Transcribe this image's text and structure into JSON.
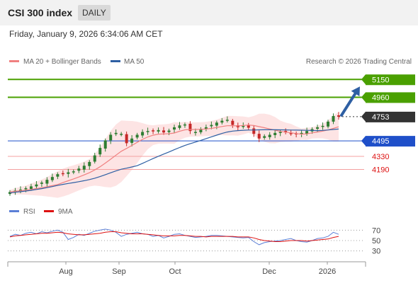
{
  "header": {
    "title": "CSI 300 index",
    "interval": "DAILY",
    "datetime": "Friday, January 9, 2026 6:34:06 AM CET"
  },
  "legend": {
    "ma20_label": "MA 20 + Bollinger Bands",
    "ma50_label": "MA 50",
    "credit": "Research © 2026 Trading Central"
  },
  "rsi_legend": {
    "rsi_label": "RSI",
    "ma_label": "9MA"
  },
  "colors": {
    "ma20": "#f08080",
    "ma50": "#2e5fa3",
    "bollinger_fill": "#fde4e4",
    "resistance": "#4aa000",
    "support": "#1f4fc9",
    "support_minor": "#f4a0a0",
    "current": "#333333",
    "arrow": "#2e5fa3",
    "up_candle": "#2e7d32",
    "down_candle": "#c62828"
  },
  "chart_data": [
    {
      "type": "candlestick",
      "title": "CSI 300 index",
      "x_ticks": [
        "Aug",
        "Sep",
        "Oct",
        "Dec",
        "2026"
      ],
      "ylim": [
        3900,
        5250
      ],
      "levels": [
        {
          "label": "5150",
          "value": 5150,
          "kind": "resistance"
        },
        {
          "label": "4960",
          "value": 4960,
          "kind": "resistance"
        },
        {
          "label": "4753",
          "value": 4753,
          "kind": "current"
        },
        {
          "label": "4495",
          "value": 4495,
          "kind": "support"
        },
        {
          "label": "4330",
          "value": 4330,
          "kind": "support_minor"
        },
        {
          "label": "4190",
          "value": 4190,
          "kind": "support_minor"
        }
      ],
      "series": [
        {
          "name": "MA 20 + Bollinger Bands"
        },
        {
          "name": "MA 50"
        }
      ],
      "close_path": [
        3950,
        3965,
        3975,
        3990,
        4010,
        4030,
        4050,
        4080,
        4110,
        4140,
        4150,
        4160,
        4170,
        4200,
        4230,
        4270,
        4340,
        4420,
        4500,
        4560,
        4580,
        4570,
        4470,
        4520,
        4560,
        4590,
        4600,
        4605,
        4610,
        4585,
        4605,
        4640,
        4660,
        4670,
        4600,
        4590,
        4620,
        4640,
        4665,
        4690,
        4710,
        4720,
        4665,
        4640,
        4655,
        4635,
        4570,
        4520,
        4545,
        4560,
        4580,
        4590,
        4585,
        4575,
        4565,
        4580,
        4600,
        4620,
        4640,
        4655,
        4700,
        4760,
        4753
      ]
    },
    {
      "type": "line",
      "title": "RSI",
      "ylim": [
        20,
        80
      ],
      "y_ticks": [
        70,
        50,
        30
      ],
      "series": [
        {
          "name": "RSI"
        },
        {
          "name": "9MA"
        }
      ],
      "rsi_path": [
        58,
        62,
        60,
        64,
        66,
        63,
        67,
        65,
        68,
        70,
        66,
        52,
        56,
        62,
        60,
        64,
        68,
        70,
        72,
        70,
        66,
        58,
        62,
        64,
        66,
        63,
        62,
        58,
        60,
        55,
        58,
        62,
        63,
        60,
        58,
        56,
        57,
        58,
        60,
        60,
        59,
        58,
        57,
        56,
        55,
        56,
        48,
        42,
        46,
        48,
        49,
        50,
        52,
        54,
        50,
        48,
        47,
        50,
        54,
        55,
        58,
        66,
        62
      ],
      "ma_path": [
        57,
        59,
        60,
        61,
        62,
        63,
        64,
        64,
        65,
        66,
        65,
        63,
        62,
        61,
        61,
        62,
        63,
        64,
        66,
        67,
        67,
        65,
        64,
        63,
        63,
        63,
        62,
        61,
        60,
        59,
        59,
        59,
        60,
        60,
        59,
        58,
        58,
        57,
        58,
        58,
        58,
        58,
        58,
        57,
        57,
        57,
        55,
        52,
        50,
        49,
        48,
        48,
        49,
        50,
        50,
        50,
        49,
        50,
        51,
        52,
        53,
        56,
        58
      ]
    }
  ]
}
